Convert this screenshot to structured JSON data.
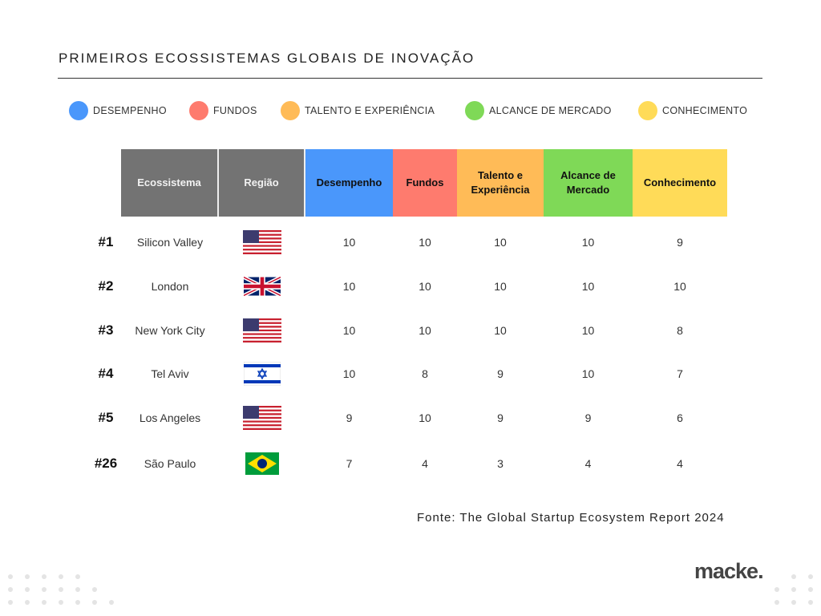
{
  "title": "PRIMEIROS ECOSSISTEMAS GLOBAIS  DE INOVAÇÃO",
  "legend": [
    {
      "label": "DESEMPENHO",
      "color": "#4a97fb"
    },
    {
      "label": "FUNDOS",
      "color": "#fe7b6e"
    },
    {
      "label": "TALENTO E EXPERIÊNCIA",
      "color": "#ffbb57"
    },
    {
      "label": "ALCANCE DE MERCADO",
      "color": "#7fd957"
    },
    {
      "label": "CONHECIMENTO",
      "color": "#ffdb58"
    }
  ],
  "table": {
    "headers": {
      "ecosystem": "Ecossistema",
      "region": "Região",
      "performance": "Desempenho",
      "funding": "Fundos",
      "talent": "Talento e Experiência",
      "market": "Alcance de Mercado",
      "knowledge": "Conhecimento"
    },
    "rows": [
      {
        "rank": "#1",
        "ecosystem": "Silicon Valley",
        "flag": "us-flag-icon",
        "performance": "10",
        "funding": "10",
        "talent": "10",
        "market": "10",
        "knowledge": "9"
      },
      {
        "rank": "#2",
        "ecosystem": "London",
        "flag": "uk-flag-icon",
        "performance": "10",
        "funding": "10",
        "talent": "10",
        "market": "10",
        "knowledge": "10"
      },
      {
        "rank": "#3",
        "ecosystem": "New York City",
        "flag": "us-flag-icon",
        "performance": "10",
        "funding": "10",
        "talent": "10",
        "market": "10",
        "knowledge": "8"
      },
      {
        "rank": "#4",
        "ecosystem": "Tel Aviv",
        "flag": "israel-flag-icon",
        "performance": "10",
        "funding": "8",
        "talent": "9",
        "market": "10",
        "knowledge": "7"
      },
      {
        "rank": "#5",
        "ecosystem": "Los Angeles",
        "flag": "us-flag-icon",
        "performance": "9",
        "funding": "10",
        "talent": "9",
        "market": "9",
        "knowledge": "6"
      },
      {
        "rank": "#26",
        "ecosystem": "São Paulo",
        "flag": "brazil-flag-icon",
        "performance": "7",
        "funding": "4",
        "talent": "3",
        "market": "4",
        "knowledge": "4"
      }
    ]
  },
  "source": "Fonte: The Global Startup Ecosystem Report 2024",
  "logo": "macke."
}
